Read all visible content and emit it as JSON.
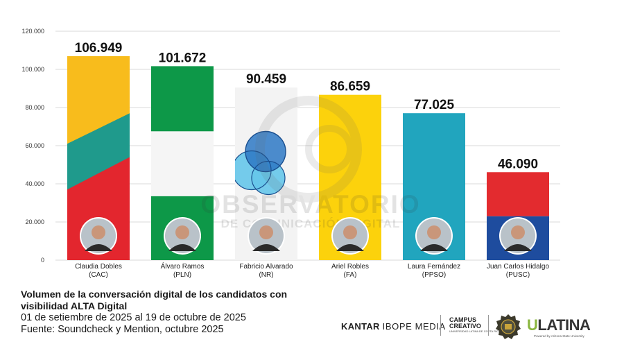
{
  "chart_data": {
    "type": "bar",
    "categories": [
      "Claudia Dobles (CAC)",
      "Álvaro Ramos (PLN)",
      "Fabricio Alvarado (NR)",
      "Ariel Robles (FA)",
      "Laura Fernández (PPSO)",
      "Juan Carlos Hidalgo (PUSC)"
    ],
    "category_lines": [
      [
        "Claudia Dobles",
        "(CAC)"
      ],
      [
        "Álvaro Ramos",
        "(PLN)"
      ],
      [
        "Fabricio Alvarado",
        "(NR)"
      ],
      [
        "Ariel Robles",
        "(FA)"
      ],
      [
        "Laura Fernández",
        "(PPSO)"
      ],
      [
        "Juan Carlos Hidalgo",
        "(PUSC)"
      ]
    ],
    "values": [
      106949,
      101672,
      90459,
      86659,
      77025,
      46090
    ],
    "value_labels": [
      "106.949",
      "101.672",
      "90.459",
      "86.659",
      "77.025",
      "46.090"
    ],
    "yticks": [
      0,
      20000,
      40000,
      60000,
      80000,
      100000,
      120000
    ],
    "ytick_labels": [
      "0",
      "20.000",
      "40.000",
      "60.000",
      "80.000",
      "100.000",
      "120.000"
    ],
    "ylim": [
      0,
      120000
    ],
    "grid": true,
    "bar_styles": [
      "cac-diagonal",
      "pln-stripes",
      "nr-circles",
      "fa-solid",
      "ppso-solid",
      "pusc-split"
    ],
    "colors": {
      "cac_red": "#e3262e",
      "cac_teal": "#1f9a8c",
      "cac_yellow": "#f8bc1c",
      "pln_green": "#0d9848",
      "pln_white": "#f5f5f5",
      "nr_bg": "#f3f3f3",
      "nr_blue_dark": "#2d78c4",
      "nr_blue_light": "#66c6ea",
      "fa_yellow": "#fcd20c",
      "ppso_teal": "#21a5be",
      "pusc_red": "#e32b2f",
      "pusc_blue": "#1e4c9e",
      "grid": "#d8d8d8",
      "axis_text": "#333333"
    }
  },
  "watermark": {
    "line1": "OBSERVATORIO",
    "line2": "DE COMUNICACIÓN DIGITAL"
  },
  "caption": {
    "title_line1": "Volumen de la conversación digital de los candidatos con",
    "title_line2": "visibilidad ALTA Digital",
    "date_range": "01 de setiembre de 2025 al 19 de octubre de 2025",
    "source": "Fuente: Soundcheck y Mention, octubre 2025"
  },
  "logos": {
    "kantar": "KANTAR",
    "ibope": "IBOPE MEDIA",
    "campus_line1": "CAMPUS",
    "campus_line2": "CREATIVO",
    "campus_sub": "UNIVERSIDAD LATINA DE COSTA RICA",
    "ulatina_u": "U",
    "ulatina_rest": "LATINA",
    "ulatina_sub": "Powered by Arizona State University"
  }
}
